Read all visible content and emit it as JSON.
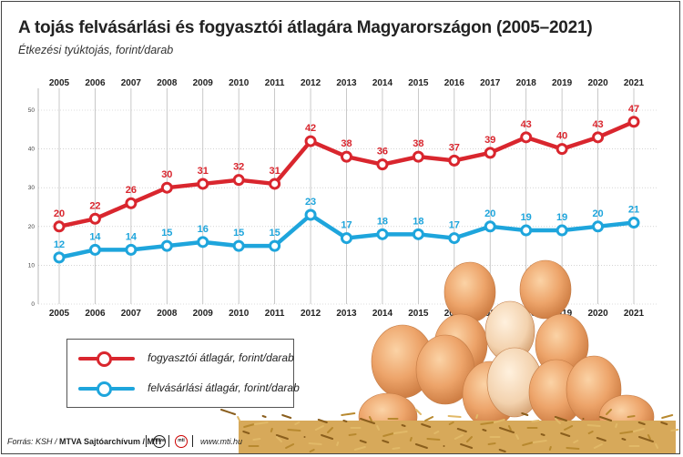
{
  "header": {
    "title": "A tojás felvásárlási és fogyasztói átlagára Magyarországon (2005–2021)",
    "subtitle": "Étkezési tyúktojás, forint/darab"
  },
  "colors": {
    "consumer": "#d9262e",
    "purchase": "#1ea5dc",
    "grid": "#bbbbbb",
    "egg": "#eda46a",
    "straw": "#b8892f"
  },
  "chart_data": {
    "type": "line",
    "title": "A tojás felvásárlási és fogyasztói átlagára Magyarországon (2005–2021)",
    "subtitle": "Étkezési tyúktojás, forint/darab",
    "x": [
      "2005",
      "2006",
      "2007",
      "2008",
      "2009",
      "2010",
      "2011",
      "2012",
      "2013",
      "2014",
      "2015",
      "2016",
      "2017",
      "2018",
      "2019",
      "2020",
      "2021"
    ],
    "ylim": [
      0,
      50
    ],
    "yticks": [
      "0",
      "10",
      "20",
      "30",
      "40",
      "50"
    ],
    "grid": true,
    "series": [
      {
        "name": "fogyasztói átlagár, forint/darab",
        "color": "#d9262e",
        "values": [
          20,
          22,
          26,
          30,
          31,
          32,
          31,
          42,
          38,
          36,
          38,
          37,
          39,
          43,
          40,
          43,
          47
        ]
      },
      {
        "name": "felvásárlási átlagár, forint/darab",
        "color": "#1ea5dc",
        "values": [
          12,
          14,
          14,
          15,
          16,
          15,
          15,
          23,
          17,
          18,
          18,
          17,
          20,
          19,
          19,
          20,
          21
        ]
      }
    ],
    "legend": "bottom-left"
  },
  "footer": {
    "source_label": "Forrás: KSH / ",
    "org": "MTVA Sajtóarchívum / MTI",
    "logo1": "mtva",
    "logo2": "mti",
    "url": "www.mti.hu"
  }
}
